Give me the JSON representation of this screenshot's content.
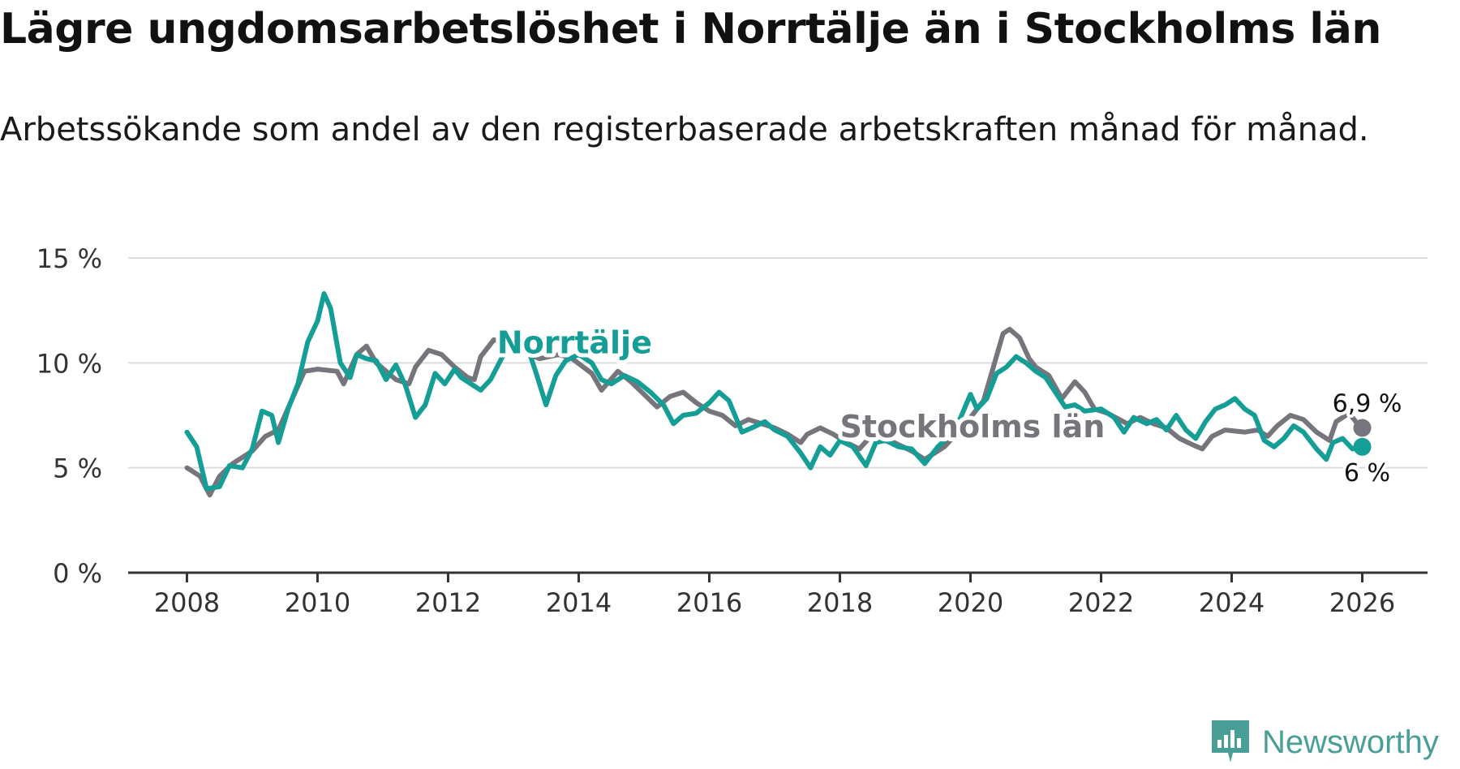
{
  "header": {
    "title": "Lägre ungdomsarbetslöshet i Norrtälje än i Stockholms län",
    "subtitle": "Arbetssökande som andel av den registerbaserade arbetskraften månad för månad."
  },
  "brand": {
    "name": "Newsworthy",
    "color": "#4a9e98"
  },
  "colors": {
    "norrtalje": "#149e96",
    "stockholm": "#76757b",
    "grid": "#dcdcdc",
    "axis": "#333333"
  },
  "chart_data": {
    "type": "line",
    "title": "Lägre ungdomsarbetslöshet i Norrtälje än i Stockholms län",
    "xlabel": "",
    "ylabel": "",
    "xlim": [
      2007.1,
      2027.0
    ],
    "ylim": [
      0,
      15
    ],
    "grid": true,
    "x_ticks": [
      2008,
      2010,
      2012,
      2014,
      2016,
      2018,
      2020,
      2022,
      2024,
      2026
    ],
    "x_tick_labels": [
      "2008",
      "2010",
      "2012",
      "2014",
      "2016",
      "2018",
      "2020",
      "2022",
      "2024",
      "2026"
    ],
    "y_ticks": [
      0,
      5,
      10,
      15
    ],
    "y_tick_labels": [
      "0 %",
      "5 %",
      "10 %",
      "15 %"
    ],
    "series": [
      {
        "name": "Stockholms län",
        "color": "#76757b",
        "end_label": "6,9 %",
        "points": [
          [
            2008.0,
            5.0
          ],
          [
            2008.2,
            4.6
          ],
          [
            2008.35,
            3.7
          ],
          [
            2008.5,
            4.6
          ],
          [
            2008.7,
            5.2
          ],
          [
            2009.0,
            5.8
          ],
          [
            2009.2,
            6.5
          ],
          [
            2009.4,
            6.8
          ],
          [
            2009.6,
            8.2
          ],
          [
            2009.8,
            9.6
          ],
          [
            2010.0,
            9.7
          ],
          [
            2010.3,
            9.6
          ],
          [
            2010.4,
            9.0
          ],
          [
            2010.6,
            10.4
          ],
          [
            2010.75,
            10.8
          ],
          [
            2010.9,
            10.0
          ],
          [
            2011.2,
            9.2
          ],
          [
            2011.4,
            9.0
          ],
          [
            2011.5,
            9.8
          ],
          [
            2011.7,
            10.6
          ],
          [
            2011.9,
            10.4
          ],
          [
            2012.1,
            9.8
          ],
          [
            2012.3,
            9.3
          ],
          [
            2012.4,
            9.2
          ],
          [
            2012.5,
            10.3
          ],
          [
            2012.7,
            11.1
          ],
          [
            2012.85,
            11.0
          ],
          [
            2013.1,
            10.6
          ],
          [
            2013.4,
            10.2
          ],
          [
            2013.7,
            10.4
          ],
          [
            2013.9,
            10.2
          ],
          [
            2014.2,
            9.5
          ],
          [
            2014.35,
            8.7
          ],
          [
            2014.6,
            9.6
          ],
          [
            2014.8,
            9.1
          ],
          [
            2015.0,
            8.5
          ],
          [
            2015.2,
            7.9
          ],
          [
            2015.4,
            8.4
          ],
          [
            2015.6,
            8.6
          ],
          [
            2015.8,
            8.1
          ],
          [
            2016.0,
            7.7
          ],
          [
            2016.2,
            7.5
          ],
          [
            2016.4,
            7.0
          ],
          [
            2016.6,
            7.3
          ],
          [
            2016.8,
            7.1
          ],
          [
            2017.0,
            6.9
          ],
          [
            2017.2,
            6.6
          ],
          [
            2017.4,
            6.2
          ],
          [
            2017.5,
            6.6
          ],
          [
            2017.7,
            6.9
          ],
          [
            2017.9,
            6.6
          ],
          [
            2018.1,
            6.2
          ],
          [
            2018.3,
            5.9
          ],
          [
            2018.5,
            6.6
          ],
          [
            2018.7,
            6.4
          ],
          [
            2018.9,
            6.1
          ],
          [
            2019.1,
            5.8
          ],
          [
            2019.3,
            5.4
          ],
          [
            2019.6,
            6.0
          ],
          [
            2019.9,
            7.0
          ],
          [
            2020.0,
            7.4
          ],
          [
            2020.2,
            8.2
          ],
          [
            2020.35,
            9.8
          ],
          [
            2020.5,
            11.4
          ],
          [
            2020.6,
            11.6
          ],
          [
            2020.75,
            11.2
          ],
          [
            2020.9,
            10.2
          ],
          [
            2021.0,
            9.8
          ],
          [
            2021.2,
            9.4
          ],
          [
            2021.4,
            8.3
          ],
          [
            2021.6,
            9.1
          ],
          [
            2021.75,
            8.6
          ],
          [
            2021.9,
            7.8
          ],
          [
            2022.1,
            7.6
          ],
          [
            2022.4,
            7.1
          ],
          [
            2022.6,
            7.4
          ],
          [
            2022.8,
            7.1
          ],
          [
            2023.0,
            6.9
          ],
          [
            2023.2,
            6.4
          ],
          [
            2023.4,
            6.1
          ],
          [
            2023.55,
            5.9
          ],
          [
            2023.7,
            6.5
          ],
          [
            2023.9,
            6.8
          ],
          [
            2024.2,
            6.7
          ],
          [
            2024.4,
            6.8
          ],
          [
            2024.55,
            6.5
          ],
          [
            2024.7,
            7.0
          ],
          [
            2024.9,
            7.5
          ],
          [
            2025.1,
            7.3
          ],
          [
            2025.3,
            6.7
          ],
          [
            2025.5,
            6.3
          ],
          [
            2025.6,
            7.2
          ],
          [
            2025.8,
            7.6
          ],
          [
            2025.95,
            7.0
          ],
          [
            2026.0,
            6.9
          ]
        ]
      },
      {
        "name": "Norrtälje",
        "color": "#149e96",
        "end_label": "6 %",
        "points": [
          [
            2008.0,
            6.7
          ],
          [
            2008.15,
            6.0
          ],
          [
            2008.3,
            4.0
          ],
          [
            2008.5,
            4.1
          ],
          [
            2008.65,
            5.1
          ],
          [
            2008.85,
            5.0
          ],
          [
            2009.0,
            5.9
          ],
          [
            2009.15,
            7.7
          ],
          [
            2009.3,
            7.5
          ],
          [
            2009.4,
            6.2
          ],
          [
            2009.55,
            7.8
          ],
          [
            2009.7,
            9.0
          ],
          [
            2009.85,
            11.0
          ],
          [
            2010.0,
            12.0
          ],
          [
            2010.1,
            13.3
          ],
          [
            2010.2,
            12.6
          ],
          [
            2010.35,
            10.0
          ],
          [
            2010.5,
            9.3
          ],
          [
            2010.6,
            10.4
          ],
          [
            2010.75,
            10.2
          ],
          [
            2010.9,
            10.1
          ],
          [
            2011.05,
            9.2
          ],
          [
            2011.2,
            9.9
          ],
          [
            2011.35,
            8.9
          ],
          [
            2011.5,
            7.4
          ],
          [
            2011.65,
            8.0
          ],
          [
            2011.8,
            9.5
          ],
          [
            2011.95,
            9.0
          ],
          [
            2012.1,
            9.7
          ],
          [
            2012.2,
            9.3
          ],
          [
            2012.35,
            9.0
          ],
          [
            2012.5,
            8.7
          ],
          [
            2012.65,
            9.2
          ],
          [
            2012.85,
            10.4
          ],
          [
            2013.0,
            10.6
          ],
          [
            2013.2,
            10.9
          ],
          [
            2013.35,
            9.5
          ],
          [
            2013.5,
            8.0
          ],
          [
            2013.65,
            9.4
          ],
          [
            2013.8,
            10.1
          ],
          [
            2014.0,
            10.4
          ],
          [
            2014.2,
            10.0
          ],
          [
            2014.35,
            9.2
          ],
          [
            2014.5,
            9.0
          ],
          [
            2014.7,
            9.4
          ],
          [
            2014.9,
            9.1
          ],
          [
            2015.1,
            8.6
          ],
          [
            2015.3,
            8.0
          ],
          [
            2015.45,
            7.1
          ],
          [
            2015.6,
            7.5
          ],
          [
            2015.8,
            7.6
          ],
          [
            2016.0,
            8.1
          ],
          [
            2016.15,
            8.6
          ],
          [
            2016.3,
            8.2
          ],
          [
            2016.5,
            6.7
          ],
          [
            2016.65,
            6.9
          ],
          [
            2016.85,
            7.2
          ],
          [
            2017.0,
            6.8
          ],
          [
            2017.2,
            6.5
          ],
          [
            2017.4,
            5.7
          ],
          [
            2017.55,
            5.0
          ],
          [
            2017.7,
            6.0
          ],
          [
            2017.85,
            5.6
          ],
          [
            2018.0,
            6.3
          ],
          [
            2018.2,
            6.0
          ],
          [
            2018.4,
            5.1
          ],
          [
            2018.55,
            6.2
          ],
          [
            2018.7,
            6.3
          ],
          [
            2018.9,
            6.0
          ],
          [
            2019.1,
            5.9
          ],
          [
            2019.3,
            5.2
          ],
          [
            2019.5,
            6.0
          ],
          [
            2019.7,
            6.6
          ],
          [
            2019.85,
            7.4
          ],
          [
            2020.0,
            8.5
          ],
          [
            2020.1,
            7.8
          ],
          [
            2020.25,
            8.3
          ],
          [
            2020.4,
            9.5
          ],
          [
            2020.55,
            9.8
          ],
          [
            2020.7,
            10.3
          ],
          [
            2020.85,
            10.0
          ],
          [
            2021.0,
            9.6
          ],
          [
            2021.15,
            9.3
          ],
          [
            2021.3,
            8.6
          ],
          [
            2021.45,
            7.9
          ],
          [
            2021.6,
            8.0
          ],
          [
            2021.75,
            7.7
          ],
          [
            2022.0,
            7.8
          ],
          [
            2022.2,
            7.4
          ],
          [
            2022.35,
            6.7
          ],
          [
            2022.5,
            7.4
          ],
          [
            2022.7,
            7.1
          ],
          [
            2022.85,
            7.3
          ],
          [
            2023.0,
            6.8
          ],
          [
            2023.15,
            7.5
          ],
          [
            2023.3,
            6.8
          ],
          [
            2023.45,
            6.4
          ],
          [
            2023.6,
            7.2
          ],
          [
            2023.75,
            7.8
          ],
          [
            2023.9,
            8.0
          ],
          [
            2024.05,
            8.3
          ],
          [
            2024.2,
            7.8
          ],
          [
            2024.35,
            7.5
          ],
          [
            2024.5,
            6.3
          ],
          [
            2024.65,
            6.0
          ],
          [
            2024.8,
            6.4
          ],
          [
            2024.95,
            7.0
          ],
          [
            2025.1,
            6.7
          ],
          [
            2025.3,
            5.9
          ],
          [
            2025.45,
            5.4
          ],
          [
            2025.55,
            6.2
          ],
          [
            2025.7,
            6.4
          ],
          [
            2025.85,
            5.9
          ],
          [
            2026.0,
            6.0
          ]
        ]
      }
    ],
    "annotations": [
      {
        "text": "Norrtälje",
        "series": "Norrtälje",
        "x": 2012.75,
        "y": 10.45
      },
      {
        "text": "Stockholms län",
        "series": "Stockholms län",
        "x": 2018.0,
        "y": 6.45
      }
    ]
  }
}
